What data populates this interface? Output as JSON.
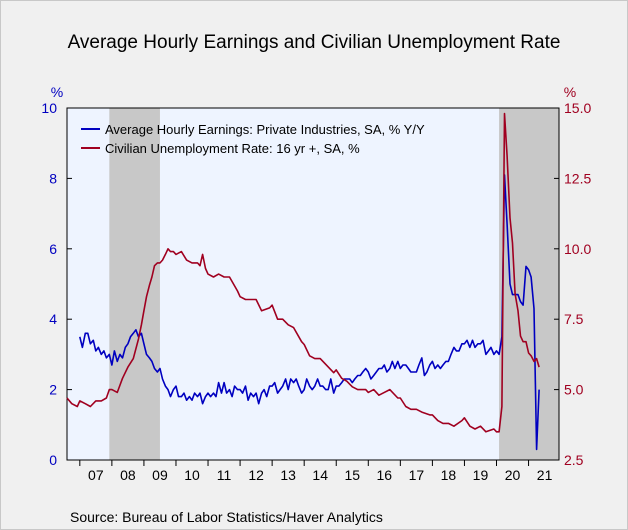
{
  "title": "Average Hourly Earnings and Civilian Unemployment Rate",
  "source": "Source:  Bureau of Labor Statistics/Haver Analytics",
  "colors": {
    "series1": "#0000c0",
    "series2": "#a00020",
    "plot_bg": "#eef4ff",
    "recession": "#c8c8c8",
    "left_axis": "#0000c0",
    "right_axis": "#a00020"
  },
  "chart_data": {
    "type": "line",
    "title": "Average Hourly Earnings and Civilian Unemployment Rate",
    "left_axis": {
      "unit_label": "%",
      "ylim": [
        0,
        10
      ],
      "ticks": [
        "0",
        "2",
        "4",
        "6",
        "8",
        "10"
      ]
    },
    "right_axis": {
      "unit_label": "%",
      "ylim": [
        2.5,
        15.0
      ],
      "ticks": [
        "2.5",
        "5.0",
        "7.5",
        "10.0",
        "12.5",
        "15.0"
      ]
    },
    "x_range": [
      2006.6,
      2021.95
    ],
    "x_ticks": [
      "07",
      "08",
      "09",
      "10",
      "11",
      "12",
      "13",
      "14",
      "15",
      "16",
      "17",
      "18",
      "19",
      "20",
      "21"
    ],
    "grid": false,
    "legend_position": "top-left",
    "recessions": [
      [
        2007.92,
        2009.5
      ],
      [
        2020.08,
        2021.95
      ]
    ],
    "series": [
      {
        "name": "Average Hourly Earnings: Private Industries, SA, % Y/Y",
        "axis": "left",
        "points": [
          [
            2007.0,
            3.5
          ],
          [
            2007.08,
            3.2
          ],
          [
            2007.17,
            3.6
          ],
          [
            2007.25,
            3.6
          ],
          [
            2007.33,
            3.3
          ],
          [
            2007.42,
            3.4
          ],
          [
            2007.5,
            3.1
          ],
          [
            2007.58,
            3.2
          ],
          [
            2007.67,
            3.0
          ],
          [
            2007.75,
            3.1
          ],
          [
            2007.83,
            2.9
          ],
          [
            2007.92,
            3.0
          ],
          [
            2008.0,
            2.7
          ],
          [
            2008.08,
            3.1
          ],
          [
            2008.17,
            2.8
          ],
          [
            2008.25,
            3.0
          ],
          [
            2008.33,
            2.9
          ],
          [
            2008.42,
            3.2
          ],
          [
            2008.5,
            3.3
          ],
          [
            2008.58,
            3.5
          ],
          [
            2008.67,
            3.6
          ],
          [
            2008.75,
            3.7
          ],
          [
            2008.83,
            3.5
          ],
          [
            2008.92,
            3.6
          ],
          [
            2009.0,
            3.3
          ],
          [
            2009.08,
            3.0
          ],
          [
            2009.17,
            2.9
          ],
          [
            2009.25,
            2.8
          ],
          [
            2009.33,
            2.6
          ],
          [
            2009.42,
            2.5
          ],
          [
            2009.5,
            2.6
          ],
          [
            2009.58,
            2.3
          ],
          [
            2009.67,
            2.1
          ],
          [
            2009.75,
            2.0
          ],
          [
            2009.83,
            1.8
          ],
          [
            2009.92,
            2.0
          ],
          [
            2010.0,
            2.1
          ],
          [
            2010.08,
            1.8
          ],
          [
            2010.17,
            1.8
          ],
          [
            2010.25,
            1.9
          ],
          [
            2010.33,
            1.7
          ],
          [
            2010.42,
            1.8
          ],
          [
            2010.5,
            1.7
          ],
          [
            2010.58,
            1.9
          ],
          [
            2010.67,
            1.8
          ],
          [
            2010.75,
            1.9
          ],
          [
            2010.83,
            1.6
          ],
          [
            2010.92,
            1.8
          ],
          [
            2011.0,
            1.9
          ],
          [
            2011.08,
            1.8
          ],
          [
            2011.17,
            1.9
          ],
          [
            2011.25,
            1.8
          ],
          [
            2011.33,
            2.2
          ],
          [
            2011.42,
            1.9
          ],
          [
            2011.5,
            2.2
          ],
          [
            2011.58,
            1.9
          ],
          [
            2011.67,
            2.0
          ],
          [
            2011.75,
            1.8
          ],
          [
            2011.83,
            2.1
          ],
          [
            2011.92,
            2.0
          ],
          [
            2012.0,
            2.0
          ],
          [
            2012.08,
            1.9
          ],
          [
            2012.17,
            2.1
          ],
          [
            2012.25,
            1.7
          ],
          [
            2012.33,
            1.9
          ],
          [
            2012.42,
            1.8
          ],
          [
            2012.5,
            1.9
          ],
          [
            2012.58,
            1.6
          ],
          [
            2012.67,
            1.9
          ],
          [
            2012.75,
            2.0
          ],
          [
            2012.83,
            1.8
          ],
          [
            2012.92,
            2.1
          ],
          [
            2013.0,
            2.1
          ],
          [
            2013.08,
            2.2
          ],
          [
            2013.17,
            1.9
          ],
          [
            2013.25,
            2.0
          ],
          [
            2013.33,
            2.1
          ],
          [
            2013.42,
            2.3
          ],
          [
            2013.5,
            2.0
          ],
          [
            2013.58,
            2.3
          ],
          [
            2013.67,
            2.2
          ],
          [
            2013.75,
            2.3
          ],
          [
            2013.83,
            2.1
          ],
          [
            2013.92,
            1.9
          ],
          [
            2014.0,
            2.0
          ],
          [
            2014.08,
            2.3
          ],
          [
            2014.17,
            2.1
          ],
          [
            2014.25,
            2.0
          ],
          [
            2014.33,
            2.1
          ],
          [
            2014.42,
            2.3
          ],
          [
            2014.5,
            2.1
          ],
          [
            2014.58,
            2.1
          ],
          [
            2014.67,
            2.0
          ],
          [
            2014.75,
            2.0
          ],
          [
            2014.83,
            2.3
          ],
          [
            2014.92,
            1.9
          ],
          [
            2015.0,
            2.1
          ],
          [
            2015.08,
            2.1
          ],
          [
            2015.17,
            2.2
          ],
          [
            2015.25,
            2.3
          ],
          [
            2015.33,
            2.3
          ],
          [
            2015.42,
            2.3
          ],
          [
            2015.5,
            2.2
          ],
          [
            2015.58,
            2.3
          ],
          [
            2015.67,
            2.4
          ],
          [
            2015.75,
            2.4
          ],
          [
            2015.83,
            2.5
          ],
          [
            2015.92,
            2.6
          ],
          [
            2016.0,
            2.5
          ],
          [
            2016.08,
            2.3
          ],
          [
            2016.17,
            2.4
          ],
          [
            2016.25,
            2.5
          ],
          [
            2016.33,
            2.6
          ],
          [
            2016.42,
            2.6
          ],
          [
            2016.5,
            2.7
          ],
          [
            2016.58,
            2.5
          ],
          [
            2016.67,
            2.6
          ],
          [
            2016.75,
            2.8
          ],
          [
            2016.83,
            2.6
          ],
          [
            2016.92,
            2.8
          ],
          [
            2017.0,
            2.6
          ],
          [
            2017.08,
            2.7
          ],
          [
            2017.17,
            2.7
          ],
          [
            2017.25,
            2.6
          ],
          [
            2017.33,
            2.5
          ],
          [
            2017.42,
            2.5
          ],
          [
            2017.5,
            2.5
          ],
          [
            2017.58,
            2.7
          ],
          [
            2017.67,
            2.9
          ],
          [
            2017.75,
            2.4
          ],
          [
            2017.83,
            2.5
          ],
          [
            2017.92,
            2.7
          ],
          [
            2018.0,
            2.8
          ],
          [
            2018.08,
            2.6
          ],
          [
            2018.17,
            2.7
          ],
          [
            2018.25,
            2.6
          ],
          [
            2018.33,
            2.7
          ],
          [
            2018.42,
            2.8
          ],
          [
            2018.5,
            2.8
          ],
          [
            2018.58,
            3.0
          ],
          [
            2018.67,
            3.2
          ],
          [
            2018.75,
            3.1
          ],
          [
            2018.83,
            3.1
          ],
          [
            2018.92,
            3.3
          ],
          [
            2019.0,
            3.3
          ],
          [
            2019.08,
            3.4
          ],
          [
            2019.17,
            3.2
          ],
          [
            2019.25,
            3.4
          ],
          [
            2019.33,
            3.2
          ],
          [
            2019.42,
            3.3
          ],
          [
            2019.5,
            3.3
          ],
          [
            2019.58,
            3.4
          ],
          [
            2019.67,
            3.0
          ],
          [
            2019.75,
            3.1
          ],
          [
            2019.83,
            3.2
          ],
          [
            2019.92,
            3.0
          ],
          [
            2020.0,
            3.1
          ],
          [
            2020.08,
            3.0
          ],
          [
            2020.17,
            3.5
          ],
          [
            2020.25,
            8.1
          ],
          [
            2020.33,
            6.7
          ],
          [
            2020.42,
            5.0
          ],
          [
            2020.5,
            4.7
          ],
          [
            2020.58,
            4.7
          ],
          [
            2020.67,
            4.7
          ],
          [
            2020.75,
            4.5
          ],
          [
            2020.83,
            4.4
          ],
          [
            2020.92,
            5.5
          ],
          [
            2021.0,
            5.4
          ],
          [
            2021.08,
            5.2
          ],
          [
            2021.17,
            4.3
          ],
          [
            2021.25,
            0.3
          ],
          [
            2021.33,
            2.0
          ]
        ]
      },
      {
        "name": "Civilian Unemployment Rate: 16 yr +, SA, %",
        "axis": "right",
        "points": [
          [
            2006.6,
            4.7
          ],
          [
            2006.75,
            4.5
          ],
          [
            2006.92,
            4.4
          ],
          [
            2007.0,
            4.6
          ],
          [
            2007.17,
            4.5
          ],
          [
            2007.33,
            4.4
          ],
          [
            2007.5,
            4.6
          ],
          [
            2007.67,
            4.6
          ],
          [
            2007.83,
            4.7
          ],
          [
            2007.92,
            5.0
          ],
          [
            2008.0,
            5.0
          ],
          [
            2008.17,
            4.9
          ],
          [
            2008.33,
            5.4
          ],
          [
            2008.5,
            5.8
          ],
          [
            2008.67,
            6.1
          ],
          [
            2008.83,
            6.8
          ],
          [
            2008.92,
            7.3
          ],
          [
            2009.0,
            7.8
          ],
          [
            2009.08,
            8.3
          ],
          [
            2009.17,
            8.7
          ],
          [
            2009.25,
            9.0
          ],
          [
            2009.33,
            9.4
          ],
          [
            2009.42,
            9.5
          ],
          [
            2009.5,
            9.5
          ],
          [
            2009.58,
            9.6
          ],
          [
            2009.67,
            9.8
          ],
          [
            2009.75,
            10.0
          ],
          [
            2009.83,
            9.9
          ],
          [
            2009.92,
            9.9
          ],
          [
            2010.0,
            9.8
          ],
          [
            2010.17,
            9.9
          ],
          [
            2010.33,
            9.6
          ],
          [
            2010.5,
            9.5
          ],
          [
            2010.67,
            9.5
          ],
          [
            2010.75,
            9.4
          ],
          [
            2010.83,
            9.8
          ],
          [
            2010.92,
            9.3
          ],
          [
            2011.0,
            9.1
          ],
          [
            2011.17,
            9.0
          ],
          [
            2011.33,
            9.1
          ],
          [
            2011.5,
            9.0
          ],
          [
            2011.67,
            9.0
          ],
          [
            2011.92,
            8.5
          ],
          [
            2012.0,
            8.3
          ],
          [
            2012.17,
            8.2
          ],
          [
            2012.33,
            8.2
          ],
          [
            2012.5,
            8.2
          ],
          [
            2012.67,
            7.8
          ],
          [
            2012.92,
            7.9
          ],
          [
            2013.0,
            8.0
          ],
          [
            2013.17,
            7.5
          ],
          [
            2013.33,
            7.5
          ],
          [
            2013.5,
            7.3
          ],
          [
            2013.67,
            7.2
          ],
          [
            2013.92,
            6.7
          ],
          [
            2014.0,
            6.6
          ],
          [
            2014.17,
            6.2
          ],
          [
            2014.33,
            6.1
          ],
          [
            2014.5,
            6.1
          ],
          [
            2014.67,
            5.9
          ],
          [
            2014.92,
            5.6
          ],
          [
            2015.0,
            5.7
          ],
          [
            2015.17,
            5.4
          ],
          [
            2015.33,
            5.3
          ],
          [
            2015.5,
            5.1
          ],
          [
            2015.67,
            5.0
          ],
          [
            2015.92,
            5.0
          ],
          [
            2016.0,
            4.9
          ],
          [
            2016.17,
            5.0
          ],
          [
            2016.33,
            4.8
          ],
          [
            2016.5,
            4.9
          ],
          [
            2016.67,
            5.0
          ],
          [
            2016.92,
            4.7
          ],
          [
            2017.0,
            4.7
          ],
          [
            2017.17,
            4.4
          ],
          [
            2017.33,
            4.3
          ],
          [
            2017.5,
            4.3
          ],
          [
            2017.67,
            4.2
          ],
          [
            2017.92,
            4.1
          ],
          [
            2018.0,
            4.1
          ],
          [
            2018.17,
            3.9
          ],
          [
            2018.33,
            3.8
          ],
          [
            2018.5,
            3.8
          ],
          [
            2018.67,
            3.7
          ],
          [
            2018.92,
            3.9
          ],
          [
            2019.0,
            4.0
          ],
          [
            2019.17,
            3.7
          ],
          [
            2019.33,
            3.6
          ],
          [
            2019.5,
            3.7
          ],
          [
            2019.67,
            3.5
          ],
          [
            2019.92,
            3.6
          ],
          [
            2020.0,
            3.5
          ],
          [
            2020.08,
            3.5
          ],
          [
            2020.17,
            4.4
          ],
          [
            2020.25,
            14.8
          ],
          [
            2020.33,
            13.3
          ],
          [
            2020.42,
            11.1
          ],
          [
            2020.5,
            10.2
          ],
          [
            2020.58,
            8.4
          ],
          [
            2020.67,
            7.8
          ],
          [
            2020.75,
            6.9
          ],
          [
            2020.83,
            6.7
          ],
          [
            2020.92,
            6.7
          ],
          [
            2021.0,
            6.3
          ],
          [
            2021.08,
            6.2
          ],
          [
            2021.17,
            6.0
          ],
          [
            2021.25,
            6.1
          ],
          [
            2021.33,
            5.8
          ]
        ]
      }
    ]
  }
}
